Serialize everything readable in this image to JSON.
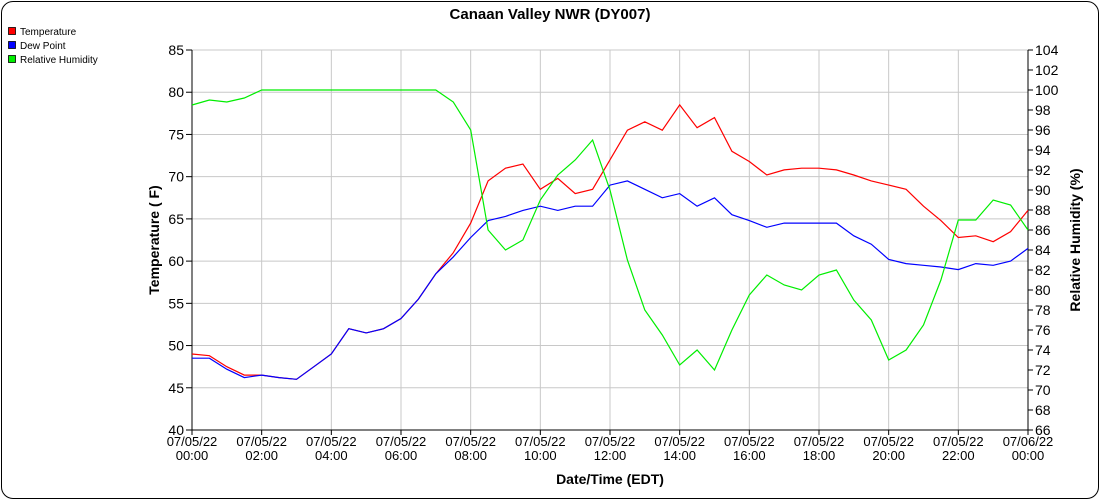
{
  "chart_data": {
    "type": "line",
    "title": "Canaan Valley NWR (DY007)",
    "xlabel": "Date/Time (EDT)",
    "ylabel": "Temperature ( F)",
    "y2label": "Relative Humidity (%)",
    "ylim": [
      40,
      85
    ],
    "y2lim": [
      66,
      104
    ],
    "yticks": [
      40,
      45,
      50,
      55,
      60,
      65,
      70,
      75,
      80,
      85
    ],
    "y2ticks": [
      66,
      68,
      70,
      72,
      74,
      76,
      78,
      80,
      82,
      84,
      86,
      88,
      90,
      92,
      94,
      96,
      98,
      100,
      102,
      104
    ],
    "xlim_hours": [
      0,
      24
    ],
    "xticks": [
      {
        "date": "07/05/22",
        "time": "00:00"
      },
      {
        "date": "07/05/22",
        "time": "02:00"
      },
      {
        "date": "07/05/22",
        "time": "04:00"
      },
      {
        "date": "07/05/22",
        "time": "06:00"
      },
      {
        "date": "07/05/22",
        "time": "08:00"
      },
      {
        "date": "07/05/22",
        "time": "10:00"
      },
      {
        "date": "07/05/22",
        "time": "12:00"
      },
      {
        "date": "07/05/22",
        "time": "14:00"
      },
      {
        "date": "07/05/22",
        "time": "16:00"
      },
      {
        "date": "07/05/22",
        "time": "18:00"
      },
      {
        "date": "07/05/22",
        "time": "20:00"
      },
      {
        "date": "07/05/22",
        "time": "22:00"
      },
      {
        "date": "07/06/22",
        "time": "00:00"
      }
    ],
    "grid": true,
    "legend_position": "top-left",
    "x_hours": [
      0,
      0.5,
      1,
      1.5,
      2,
      2.5,
      3,
      3.5,
      4,
      4.5,
      5,
      5.5,
      6,
      6.5,
      7,
      7.5,
      8,
      8.5,
      9,
      9.5,
      10,
      10.5,
      11,
      11.5,
      12,
      12.5,
      13,
      13.5,
      14,
      14.5,
      15,
      15.5,
      16,
      16.5,
      17,
      17.5,
      18,
      18.5,
      19,
      19.5,
      20,
      20.5,
      21,
      21.5,
      22,
      22.5,
      23,
      23.5,
      24
    ],
    "series": [
      {
        "name": "Temperature",
        "color": "#ff0000",
        "axis": "left",
        "values": [
          49,
          48.8,
          47.5,
          46.5,
          46.5,
          46.2,
          46,
          47.5,
          49,
          52,
          51.5,
          52,
          53.2,
          55.5,
          58.5,
          61,
          64.5,
          69.5,
          71,
          71.5,
          68.5,
          69.8,
          68,
          68.5,
          72,
          75.5,
          76.5,
          75.5,
          78.5,
          75.8,
          77,
          73,
          71.8,
          70.2,
          70.8,
          71,
          71,
          70.8,
          70.2,
          69.5,
          69,
          68.5,
          66.5,
          64.8,
          62.8,
          63,
          62.3,
          63.5,
          66
        ]
      },
      {
        "name": "Dew Point",
        "color": "#0000ff",
        "axis": "left",
        "values": [
          48.5,
          48.5,
          47.2,
          46.2,
          46.5,
          46.2,
          46,
          47.5,
          49,
          52,
          51.5,
          52,
          53.2,
          55.5,
          58.5,
          60.5,
          62.8,
          64.8,
          65.3,
          66,
          66.5,
          66,
          66.5,
          66.5,
          69,
          69.5,
          68.5,
          67.5,
          68,
          66.5,
          67.5,
          65.5,
          64.8,
          64,
          64.5,
          64.5,
          64.5,
          64.5,
          63,
          62,
          60.2,
          59.7,
          59.5,
          59.3,
          59,
          59.7,
          59.5,
          60,
          61.5
        ]
      },
      {
        "name": "Relative Humidity",
        "color": "#00ee00",
        "axis": "right",
        "values": [
          98.5,
          99,
          98.8,
          99.2,
          100,
          100,
          100,
          100,
          100,
          100,
          100,
          100,
          100,
          100,
          100,
          98.8,
          96,
          86,
          84,
          85,
          89,
          91.5,
          93,
          95,
          90,
          83,
          78,
          75.5,
          72.5,
          74,
          72,
          76,
          79.5,
          81.5,
          80.5,
          80,
          81.5,
          82,
          79,
          77,
          73,
          74,
          76.5,
          81,
          87,
          87,
          89,
          88.5,
          86
        ]
      }
    ]
  }
}
